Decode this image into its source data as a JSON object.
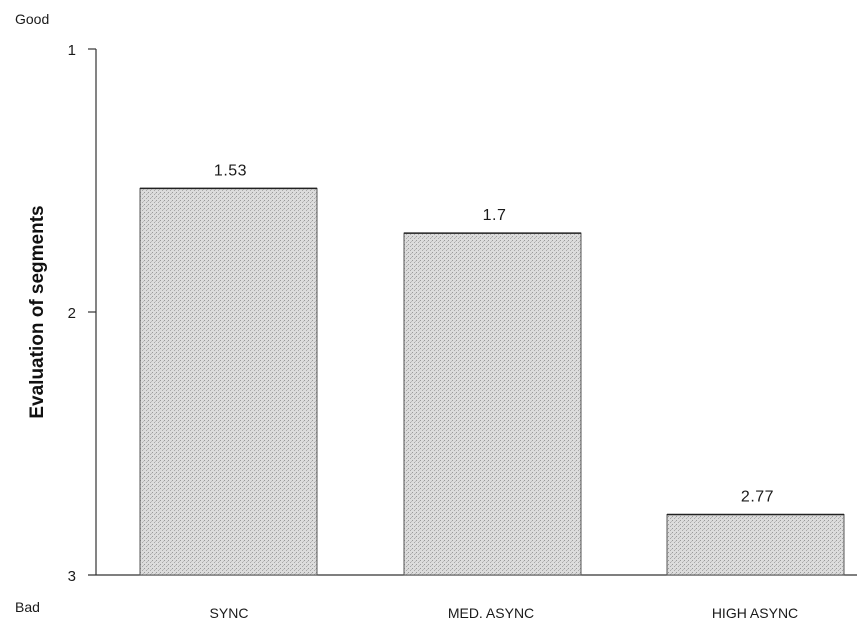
{
  "chart_data": {
    "type": "bar",
    "categories": [
      "SYNC",
      "MED. ASYNC",
      "HIGH ASYNC"
    ],
    "values": [
      1.53,
      1.7,
      2.77
    ],
    "value_labels": [
      "1.53",
      "1.7",
      "2.77"
    ],
    "ylabel": "Evaluation of segments",
    "y_top_label": "Good",
    "y_bottom_label": "Bad",
    "ylim": [
      1,
      3
    ],
    "y_inverted": true,
    "yticks": [
      "1",
      "2",
      "3"
    ],
    "grid": false,
    "bar_fill_color": "#d6d6d6",
    "bar_edge_color": "#555555"
  }
}
